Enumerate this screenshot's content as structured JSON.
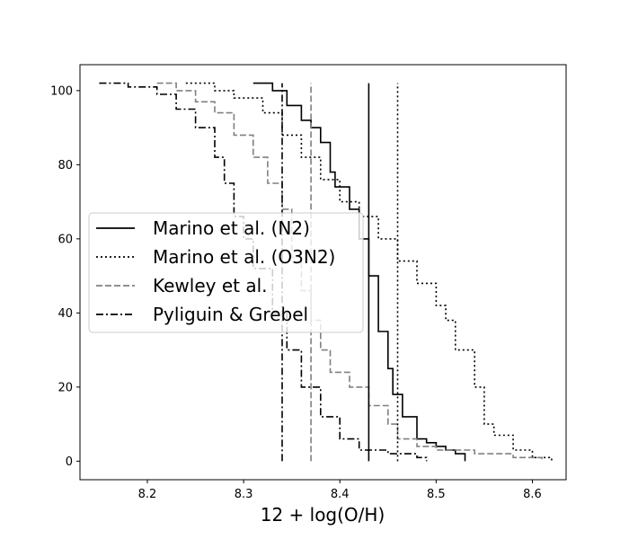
{
  "chart_data": {
    "type": "line",
    "subtype": "cumulative-step",
    "xlabel": "12 + log(O/H)",
    "ylabel": "",
    "xlim": [
      8.13,
      8.635
    ],
    "ylim": [
      -5,
      107
    ],
    "xticks": [
      "8.2",
      "8.3",
      "8.4",
      "8.5",
      "8.6"
    ],
    "yticks": [
      "0",
      "20",
      "40",
      "60",
      "80",
      "100"
    ],
    "grid": false,
    "legend_position": "center-left",
    "series": [
      {
        "name": "Marino et al. (N2)",
        "style": "solid",
        "color": "#000000",
        "median": 8.43,
        "points": [
          [
            8.31,
            102
          ],
          [
            8.33,
            100
          ],
          [
            8.345,
            96
          ],
          [
            8.36,
            92
          ],
          [
            8.37,
            90
          ],
          [
            8.38,
            86
          ],
          [
            8.39,
            78
          ],
          [
            8.395,
            74
          ],
          [
            8.41,
            68
          ],
          [
            8.42,
            60
          ],
          [
            8.43,
            50
          ],
          [
            8.44,
            35
          ],
          [
            8.45,
            25
          ],
          [
            8.455,
            18
          ],
          [
            8.465,
            12
          ],
          [
            8.48,
            6
          ],
          [
            8.49,
            5
          ],
          [
            8.5,
            4
          ],
          [
            8.51,
            3
          ],
          [
            8.52,
            2
          ],
          [
            8.53,
            0
          ]
        ]
      },
      {
        "name": "Marino et al. (O3N2)",
        "style": "dotted",
        "color": "#000000",
        "median": 8.46,
        "points": [
          [
            8.24,
            102
          ],
          [
            8.27,
            100
          ],
          [
            8.29,
            98
          ],
          [
            8.32,
            94
          ],
          [
            8.34,
            88
          ],
          [
            8.36,
            82
          ],
          [
            8.38,
            76
          ],
          [
            8.4,
            70
          ],
          [
            8.42,
            66
          ],
          [
            8.44,
            60
          ],
          [
            8.46,
            54
          ],
          [
            8.48,
            48
          ],
          [
            8.5,
            42
          ],
          [
            8.51,
            38
          ],
          [
            8.52,
            30
          ],
          [
            8.54,
            20
          ],
          [
            8.55,
            10
          ],
          [
            8.56,
            7
          ],
          [
            8.58,
            3
          ],
          [
            8.6,
            1
          ],
          [
            8.62,
            0
          ]
        ]
      },
      {
        "name": "Kewley et al.",
        "style": "dashed",
        "color": "#808080",
        "median": 8.37,
        "points": [
          [
            8.21,
            102
          ],
          [
            8.23,
            100
          ],
          [
            8.25,
            97
          ],
          [
            8.27,
            94
          ],
          [
            8.29,
            88
          ],
          [
            8.31,
            82
          ],
          [
            8.325,
            75
          ],
          [
            8.34,
            68
          ],
          [
            8.35,
            55
          ],
          [
            8.36,
            46
          ],
          [
            8.37,
            38
          ],
          [
            8.38,
            30
          ],
          [
            8.39,
            24
          ],
          [
            8.41,
            20
          ],
          [
            8.43,
            15
          ],
          [
            8.45,
            10
          ],
          [
            8.46,
            6
          ],
          [
            8.48,
            4
          ],
          [
            8.5,
            3
          ],
          [
            8.54,
            2
          ],
          [
            8.58,
            1
          ],
          [
            8.61,
            0
          ]
        ]
      },
      {
        "name": "Pyliguin & Grebel",
        "style": "dashdot",
        "color": "#000000",
        "median": 8.34,
        "points": [
          [
            8.15,
            102
          ],
          [
            8.18,
            101
          ],
          [
            8.21,
            99
          ],
          [
            8.23,
            95
          ],
          [
            8.25,
            90
          ],
          [
            8.27,
            82
          ],
          [
            8.28,
            75
          ],
          [
            8.29,
            66
          ],
          [
            8.3,
            60
          ],
          [
            8.31,
            52
          ],
          [
            8.33,
            40
          ],
          [
            8.345,
            30
          ],
          [
            8.36,
            20
          ],
          [
            8.38,
            12
          ],
          [
            8.4,
            6
          ],
          [
            8.42,
            3
          ],
          [
            8.45,
            2
          ],
          [
            8.48,
            1
          ],
          [
            8.49,
            0
          ]
        ]
      }
    ]
  }
}
